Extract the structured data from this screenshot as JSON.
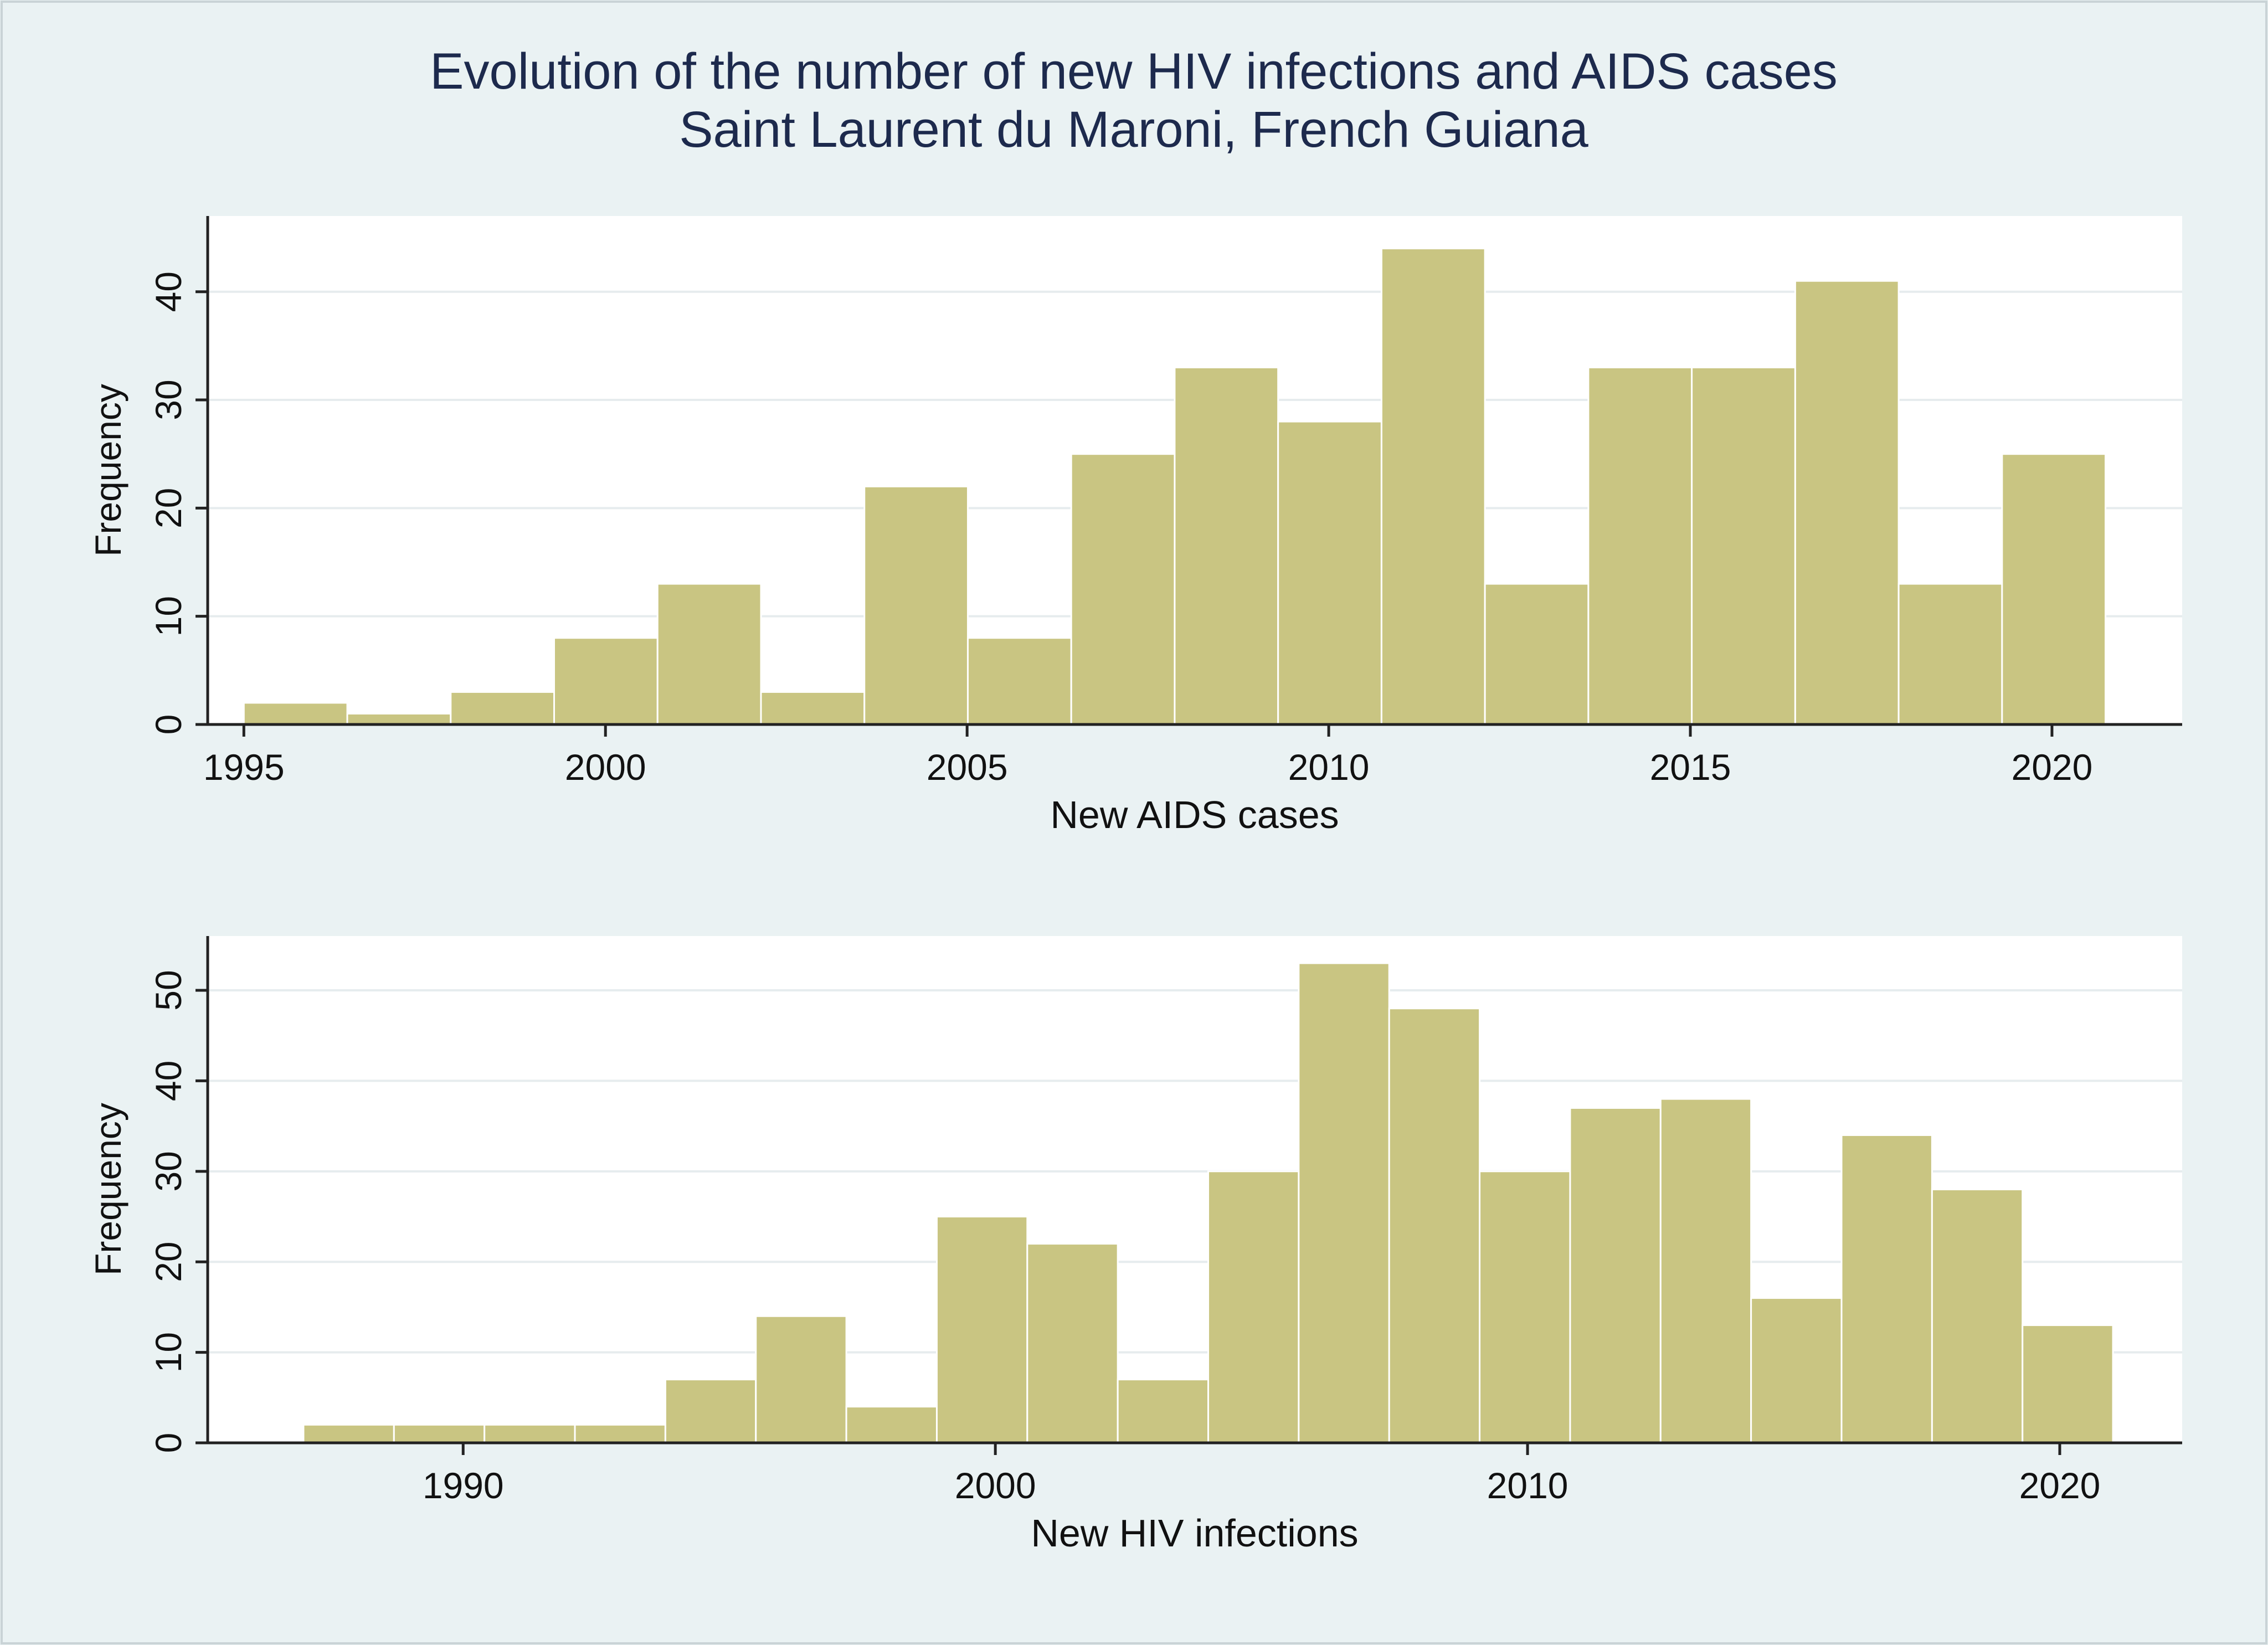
{
  "page": {
    "background": "#eaf2f3",
    "plot_background": "#ffffff",
    "bar_color": "#c9c582",
    "title_color": "#1d2a4d"
  },
  "title": {
    "line1": "Evolution of the number of new HIV infections and AIDS cases",
    "line2": "Saint Laurent du Maroni, French Guiana"
  },
  "chart_data": [
    {
      "type": "bar",
      "name": "aids",
      "title": "",
      "xlabel": "New AIDS cases",
      "ylabel": "Frequency",
      "xlim": [
        1994.5,
        2021.8
      ],
      "ylim": [
        0,
        47
      ],
      "bin_start": 1995,
      "bin_width": 1.43,
      "values": [
        2,
        1,
        3,
        8,
        13,
        3,
        22,
        8,
        25,
        33,
        28,
        44,
        13,
        33,
        33,
        41,
        13,
        25
      ],
      "xticks": [
        1995,
        2000,
        2005,
        2010,
        2015,
        2020
      ],
      "xtick_labels": [
        "1995",
        "2000",
        "2005",
        "2010",
        "2015",
        "2020"
      ],
      "yticks": [
        0,
        10,
        20,
        30,
        40
      ],
      "ytick_labels": [
        "0",
        "10",
        "20",
        "30",
        "40"
      ]
    },
    {
      "type": "bar",
      "name": "hiv",
      "title": "",
      "xlabel": "New HIV infections",
      "ylabel": "Frequency",
      "xlim": [
        1985.2,
        2022.3
      ],
      "ylim": [
        0,
        56
      ],
      "bin_start": 1987,
      "bin_width": 1.7,
      "values": [
        2,
        2,
        2,
        2,
        7,
        14,
        4,
        25,
        22,
        7,
        30,
        53,
        48,
        30,
        37,
        38,
        16,
        34,
        28,
        13
      ],
      "xticks": [
        1990,
        2000,
        2010,
        2020
      ],
      "xtick_labels": [
        "1990",
        "2000",
        "2010",
        "2020"
      ],
      "yticks": [
        0,
        10,
        20,
        30,
        40,
        50
      ],
      "ytick_labels": [
        "0",
        "10",
        "20",
        "30",
        "40",
        "50"
      ]
    }
  ]
}
